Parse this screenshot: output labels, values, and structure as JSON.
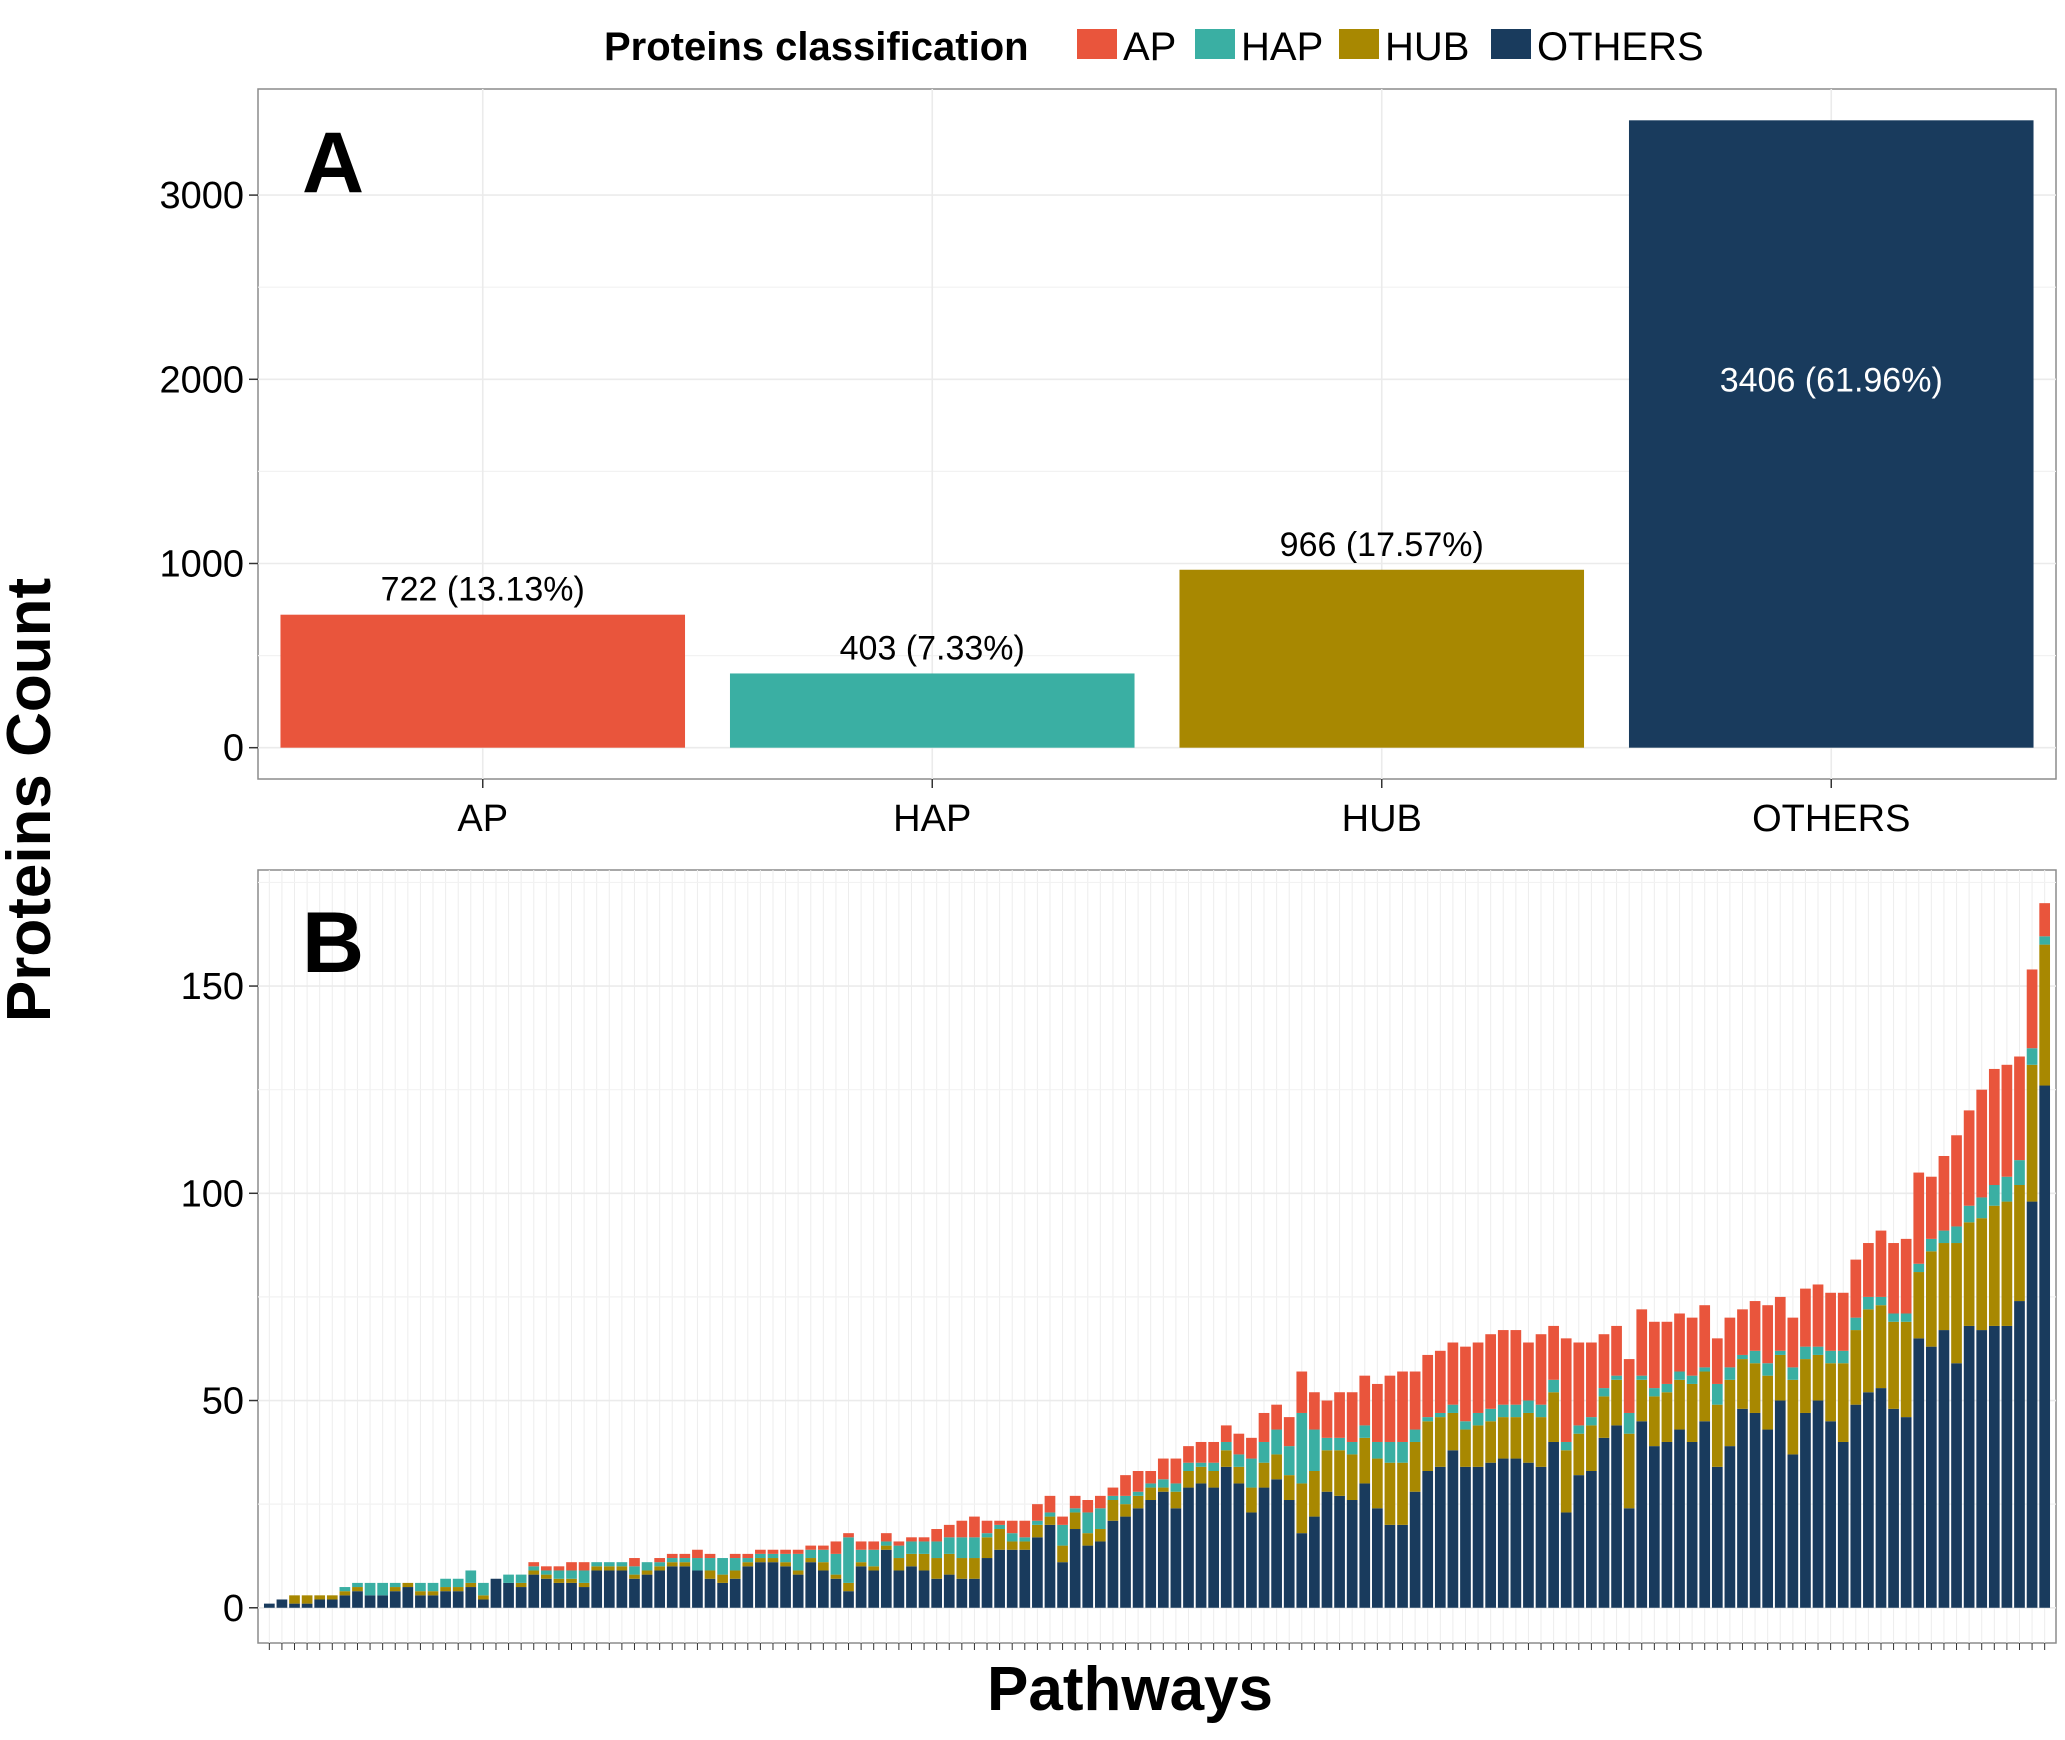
{
  "legend": {
    "title": "Proteins classification",
    "entries": [
      {
        "label": "AP",
        "color": "#E9553C"
      },
      {
        "label": "HAP",
        "color": "#3AAFA3"
      },
      {
        "label": "HUB",
        "color": "#A88801"
      },
      {
        "label": "OTHERS",
        "color": "#193B5D"
      }
    ]
  },
  "y_axis_title": "Proteins Count",
  "x_axis_title": "Pathways",
  "chart_data": [
    {
      "panel": "A",
      "type": "bar",
      "categories": [
        "AP",
        "HAP",
        "HUB",
        "OTHERS"
      ],
      "values": [
        722,
        403,
        966,
        3406
      ],
      "data_labels": [
        "722 (13.13%)",
        "403 (7.33%)",
        "966 (17.57%)",
        "3406 (61.96%)"
      ],
      "colors": [
        "#E9553C",
        "#3AAFA3",
        "#A88801",
        "#193B5D"
      ],
      "ylim": [
        -170,
        3576
      ],
      "yticks": [
        0,
        1000,
        2000,
        3000
      ],
      "grid": true
    },
    {
      "panel": "B",
      "type": "bar",
      "stacked": true,
      "x_tick_labels_shown": false,
      "ylim": [
        -8.5,
        178
      ],
      "yticks": [
        0,
        50,
        100,
        150
      ],
      "grid": true,
      "series": [
        {
          "name": "OTHERS",
          "color": "#193B5D",
          "values": [
            1,
            2,
            1,
            1,
            2,
            2,
            3,
            4,
            3,
            3,
            4,
            5,
            3,
            3,
            4,
            4,
            5,
            2,
            7,
            6,
            5,
            8,
            7,
            6,
            6,
            5,
            9,
            9,
            9,
            7,
            8,
            9,
            10,
            10,
            9,
            7,
            6,
            7,
            10,
            11,
            11,
            10,
            8,
            11,
            9,
            7,
            4,
            10,
            9,
            14,
            9,
            10,
            9,
            7,
            8,
            7,
            7,
            12,
            14,
            14,
            14,
            17,
            20,
            11,
            19,
            15,
            16,
            21,
            22,
            24,
            26,
            28,
            24,
            29,
            30,
            29,
            34,
            30,
            23,
            29,
            31,
            26,
            18,
            22,
            28,
            27,
            26,
            30,
            24,
            20,
            20,
            28,
            33,
            34,
            38,
            34,
            34,
            35,
            36,
            36,
            35,
            34,
            40,
            23,
            32,
            33,
            41,
            44,
            24,
            45,
            39,
            40,
            43,
            40,
            45,
            34,
            39,
            48,
            47,
            43,
            50,
            37,
            47,
            50,
            45,
            40,
            49,
            52,
            53,
            48,
            46,
            65,
            63,
            67,
            59,
            68,
            67,
            68,
            68,
            74,
            98,
            126
          ]
        },
        {
          "name": "HUB",
          "color": "#A88801",
          "values": [
            0,
            0,
            2,
            2,
            1,
            1,
            1,
            1,
            0,
            0,
            1,
            1,
            1,
            1,
            1,
            1,
            1,
            1,
            0,
            0,
            1,
            1,
            1,
            1,
            1,
            1,
            1,
            1,
            1,
            1,
            1,
            1,
            1,
            1,
            0,
            2,
            2,
            2,
            1,
            1,
            1,
            1,
            1,
            1,
            2,
            1,
            2,
            1,
            1,
            1,
            3,
            3,
            4,
            5,
            5,
            5,
            5,
            5,
            5,
            2,
            2,
            3,
            2,
            4,
            4,
            3,
            3,
            5,
            3,
            3,
            3,
            1,
            4,
            4,
            4,
            4,
            4,
            4,
            6,
            6,
            6,
            6,
            12,
            11,
            10,
            11,
            11,
            11,
            12,
            15,
            15,
            12,
            12,
            12,
            9,
            9,
            10,
            10,
            10,
            10,
            12,
            12,
            12,
            15,
            10,
            11,
            10,
            11,
            18,
            10,
            12,
            12,
            12,
            14,
            12,
            15,
            16,
            12,
            12,
            13,
            11,
            18,
            13,
            11,
            14,
            19,
            18,
            20,
            20,
            21,
            23,
            16,
            23,
            21,
            29,
            25,
            27,
            29,
            30,
            28,
            33,
            34
          ]
        },
        {
          "name": "HAP",
          "color": "#3AAFA3",
          "values": [
            0,
            0,
            0,
            0,
            0,
            0,
            1,
            1,
            3,
            3,
            1,
            0,
            2,
            2,
            2,
            2,
            3,
            3,
            0,
            2,
            2,
            1,
            1,
            2,
            2,
            3,
            1,
            1,
            1,
            2,
            2,
            1,
            1,
            1,
            3,
            3,
            4,
            3,
            1,
            1,
            1,
            2,
            4,
            2,
            3,
            5,
            11,
            3,
            4,
            1,
            3,
            3,
            3,
            4,
            4,
            5,
            5,
            1,
            1,
            2,
            1,
            1,
            1,
            5,
            1,
            5,
            5,
            1,
            2,
            1,
            1,
            2,
            2,
            2,
            1,
            2,
            2,
            3,
            7,
            5,
            6,
            7,
            17,
            10,
            3,
            3,
            3,
            3,
            4,
            5,
            5,
            3,
            1,
            1,
            2,
            2,
            3,
            3,
            3,
            3,
            3,
            3,
            3,
            2,
            2,
            2,
            2,
            1,
            5,
            1,
            2,
            2,
            2,
            2,
            1,
            5,
            3,
            1,
            3,
            3,
            1,
            3,
            3,
            2,
            3,
            3,
            3,
            3,
            2,
            2,
            2,
            2,
            3,
            3,
            4,
            4,
            5,
            5,
            6,
            6,
            4,
            2
          ]
        },
        {
          "name": "AP",
          "color": "#E9553C",
          "values": [
            0,
            0,
            0,
            0,
            0,
            0,
            0,
            0,
            0,
            0,
            0,
            0,
            0,
            0,
            0,
            0,
            0,
            0,
            0,
            0,
            0,
            1,
            1,
            1,
            2,
            2,
            0,
            0,
            0,
            2,
            0,
            1,
            1,
            1,
            2,
            1,
            0,
            1,
            1,
            1,
            1,
            1,
            1,
            1,
            1,
            3,
            1,
            2,
            2,
            2,
            1,
            1,
            1,
            3,
            3,
            4,
            5,
            3,
            1,
            3,
            4,
            4,
            4,
            2,
            3,
            3,
            3,
            2,
            5,
            5,
            3,
            5,
            6,
            4,
            5,
            5,
            4,
            5,
            5,
            7,
            6,
            7,
            10,
            9,
            9,
            11,
            12,
            12,
            14,
            16,
            17,
            14,
            15,
            15,
            15,
            18,
            17,
            18,
            18,
            18,
            14,
            17,
            13,
            25,
            20,
            18,
            13,
            12,
            13,
            16,
            16,
            15,
            14,
            14,
            15,
            11,
            12,
            11,
            12,
            14,
            13,
            12,
            14,
            15,
            14,
            14,
            14,
            13,
            16,
            17,
            18,
            22,
            15,
            18,
            22,
            23,
            26,
            28,
            27,
            25,
            19,
            8
          ]
        }
      ]
    }
  ]
}
